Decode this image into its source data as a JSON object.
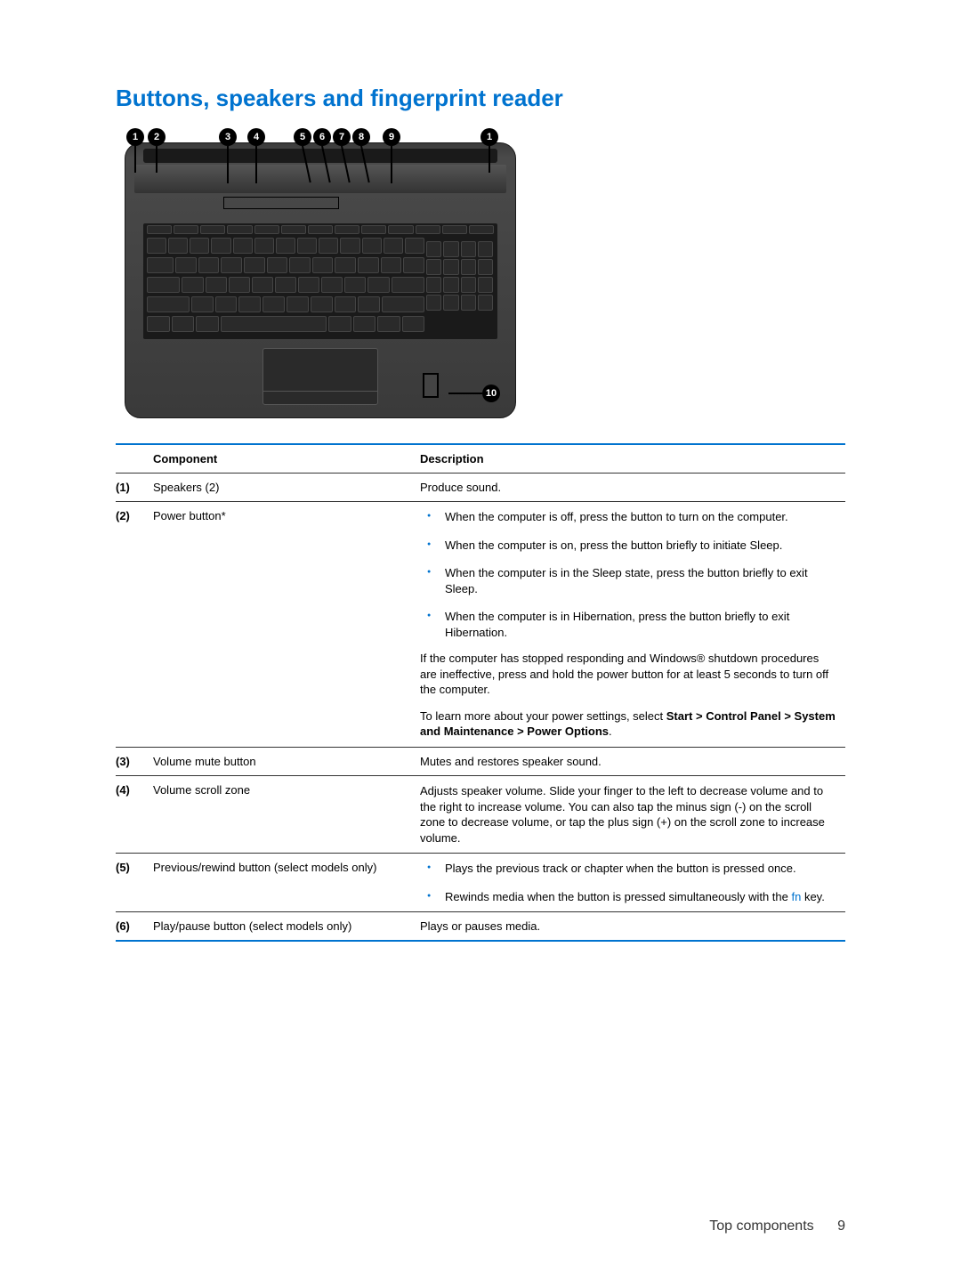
{
  "title": "Buttons, speakers and fingerprint reader",
  "table": {
    "headers": {
      "component": "Component",
      "description": "Description"
    },
    "rows": [
      {
        "num": "(1)",
        "component": "Speakers (2)",
        "type": "text",
        "text": "Produce sound."
      },
      {
        "num": "(2)",
        "component": "Power button*",
        "type": "power",
        "bullets": [
          "When the computer is off, press the button to turn on the computer.",
          "When the computer is on, press the button briefly to initiate Sleep.",
          "When the computer is in the Sleep state, press the button briefly to exit Sleep.",
          "When the computer is in Hibernation, press the button briefly to exit Hibernation."
        ],
        "para1": "If the computer has stopped responding and Windows® shutdown procedures are ineffective, press and hold the power button for at least 5 seconds to turn off the computer.",
        "para2_prefix": "To learn more about your power settings, select ",
        "para2_bold": "Start > Control Panel > System and Maintenance > Power Options",
        "para2_suffix": "."
      },
      {
        "num": "(3)",
        "component": "Volume mute button",
        "type": "text",
        "text": "Mutes and restores speaker sound."
      },
      {
        "num": "(4)",
        "component": "Volume scroll zone",
        "type": "text",
        "text": "Adjusts speaker volume. Slide your finger to the left to decrease volume and to the right to increase volume. You can also tap the minus sign (-) on the scroll zone to decrease volume, or tap the plus sign (+) on the scroll zone to increase volume."
      },
      {
        "num": "(5)",
        "component": "Previous/rewind button (select models only)",
        "type": "bullets_fn",
        "bullets": [
          "Plays the previous track or chapter when the button is pressed once."
        ],
        "bullet_fn_prefix": "Rewinds media when the button is pressed simultaneously with the ",
        "bullet_fn_link": "fn",
        "bullet_fn_suffix": " key."
      },
      {
        "num": "(6)",
        "component": "Play/pause button (select models only)",
        "type": "text",
        "text": "Plays or pauses media."
      }
    ]
  },
  "callouts": [
    "1",
    "2",
    "3",
    "4",
    "5",
    "6",
    "7",
    "8",
    "9",
    "1",
    "10"
  ],
  "footer": {
    "label": "Top components",
    "page": "9"
  },
  "colors": {
    "accent": "#0073cf",
    "text": "#000000"
  }
}
